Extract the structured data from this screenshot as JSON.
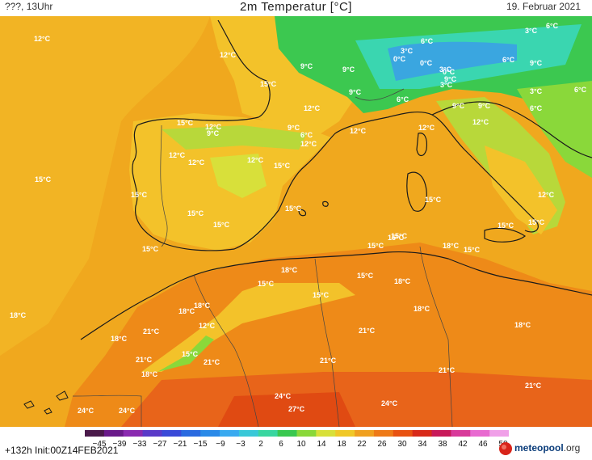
{
  "header": {
    "left": "???, 13Uhr",
    "title": "2m Temperatur [°C]",
    "date": "19. Februar 2021"
  },
  "footer": {
    "run": "+132h  Init:00Z14FEB2021",
    "logo_name": "meteopool",
    "logo_suffix": ".org"
  },
  "colors": {
    "sea_orange": "#f0a81e",
    "land_yellow": "#f3c22a",
    "warm_orange": "#ee8a18",
    "hot_red": "#e85a12",
    "green_cold": "#3cc850",
    "cyan_cold": "#3ad6b0",
    "blue_alps": "#3aa6e0"
  },
  "scale": {
    "labels": [
      "−45",
      "−39",
      "−33",
      "−27",
      "−21",
      "−15",
      "−9",
      "−3",
      "2",
      "6",
      "10",
      "14",
      "18",
      "22",
      "26",
      "30",
      "34",
      "38",
      "42",
      "46",
      "50"
    ],
    "colors": [
      "#4a1a4a",
      "#6a1a8a",
      "#8a2ab0",
      "#5a3ac8",
      "#3a4ad8",
      "#2a6ae0",
      "#2a8ae8",
      "#3aaaf0",
      "#3ac8d8",
      "#3ad6a0",
      "#3ac850",
      "#8ad83a",
      "#d8e03a",
      "#f0c828",
      "#f0a020",
      "#ee7a18",
      "#e85212",
      "#d82a1a",
      "#c81a5a",
      "#d83a9a",
      "#e86ad0",
      "#f0a0e8"
    ]
  },
  "labels": [
    {
      "t": "12°C"
    },
    {
      "t": "12°C"
    },
    {
      "t": "15°C"
    },
    {
      "t": "12°C"
    },
    {
      "t": "9°C"
    },
    {
      "t": "9°C"
    },
    {
      "t": "9°C"
    },
    {
      "t": "3°C"
    },
    {
      "t": "6°C"
    },
    {
      "t": "0°C"
    },
    {
      "t": "0°C"
    },
    {
      "t": "3°C"
    },
    {
      "t": "0°C"
    },
    {
      "t": "6°C"
    },
    {
      "t": "3°C"
    },
    {
      "t": "6°C"
    },
    {
      "t": "3°C"
    },
    {
      "t": "9°C"
    },
    {
      "t": "9°C"
    },
    {
      "t": "9°C"
    },
    {
      "t": "3°C"
    },
    {
      "t": "6°C"
    },
    {
      "t": "6°C"
    },
    {
      "t": "9°C"
    },
    {
      "t": "6°C"
    },
    {
      "t": "15°C"
    },
    {
      "t": "12°C"
    },
    {
      "t": "9°C"
    },
    {
      "t": "9°C"
    },
    {
      "t": "6°C"
    },
    {
      "t": "12°C"
    },
    {
      "t": "12°C"
    },
    {
      "t": "12°C"
    },
    {
      "t": "12°C"
    },
    {
      "t": "12°C"
    },
    {
      "t": "12°C"
    },
    {
      "t": "12°C"
    },
    {
      "t": "15°C"
    },
    {
      "t": "15°C"
    },
    {
      "t": "15°C"
    },
    {
      "t": "15°C"
    },
    {
      "t": "15°C"
    },
    {
      "t": "15°C"
    },
    {
      "t": "12°C"
    },
    {
      "t": "15°C"
    },
    {
      "t": "15°C"
    },
    {
      "t": "15°C"
    },
    {
      "t": "15°C"
    },
    {
      "t": "15°C"
    },
    {
      "t": "15°C"
    },
    {
      "t": "18°C"
    },
    {
      "t": "15°C"
    },
    {
      "t": "18°C"
    },
    {
      "t": "15°C"
    },
    {
      "t": "15°C"
    },
    {
      "t": "18°C"
    },
    {
      "t": "15°C"
    },
    {
      "t": "18°C"
    },
    {
      "t": "18°C"
    },
    {
      "t": "18°C"
    },
    {
      "t": "18°C"
    },
    {
      "t": "18°C"
    },
    {
      "t": "21°C"
    },
    {
      "t": "12°C"
    },
    {
      "t": "15°C"
    },
    {
      "t": "21°C"
    },
    {
      "t": "21°C"
    },
    {
      "t": "18°C"
    },
    {
      "t": "21°C"
    },
    {
      "t": "21°C"
    },
    {
      "t": "21°C"
    },
    {
      "t": "18°C"
    },
    {
      "t": "21°C"
    },
    {
      "t": "24°C"
    },
    {
      "t": "24°C"
    },
    {
      "t": "24°C"
    },
    {
      "t": "27°C"
    },
    {
      "t": "24°C"
    },
    {
      "t": "15°C"
    }
  ]
}
